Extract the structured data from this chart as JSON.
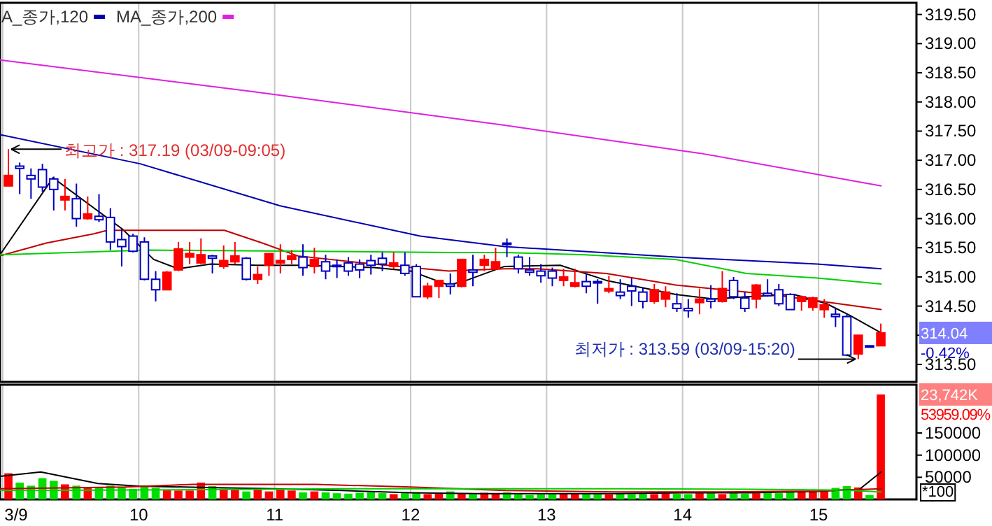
{
  "chart_data": [
    {
      "type": "candlestick",
      "legend": "top left",
      "grid": "x",
      "tick_labels": "y",
      "xlim": [
        8.98,
        15.72
      ],
      "xticks": [
        9,
        10,
        11,
        12,
        13,
        14,
        15
      ],
      "ylim": [
        313.2,
        319.7
      ],
      "yticks": [
        {
          "value": 313.5,
          "label": "313.50"
        },
        {
          "value": 314,
          "label": null
        },
        {
          "value": 314.5,
          "label": "314.50"
        },
        {
          "value": 315,
          "label": "315.00"
        },
        {
          "value": 315.5,
          "label": "315.50"
        },
        {
          "value": 316,
          "label": "316.00"
        },
        {
          "value": 316.5,
          "label": "316.50"
        },
        {
          "value": 317,
          "label": "317.00"
        },
        {
          "value": 317.5,
          "label": "317.50"
        },
        {
          "value": 318,
          "label": "318.00"
        },
        {
          "value": 318.5,
          "label": "318.50"
        },
        {
          "value": 319,
          "label": "319.00"
        },
        {
          "value": 319.5,
          "label": "319.50"
        }
      ],
      "x": [
        9.042,
        9.125,
        9.208,
        9.292,
        9.375,
        9.458,
        9.542,
        9.625,
        9.708,
        9.792,
        9.875,
        9.958,
        10.042,
        10.125,
        10.208,
        10.292,
        10.375,
        10.458,
        10.542,
        10.625,
        10.708,
        10.792,
        10.875,
        10.958,
        11.042,
        11.125,
        11.208,
        11.292,
        11.375,
        11.458,
        11.542,
        11.625,
        11.708,
        11.792,
        11.875,
        11.958,
        12.042,
        12.125,
        12.208,
        12.292,
        12.375,
        12.458,
        12.542,
        12.625,
        12.708,
        12.792,
        12.875,
        12.958,
        13.042,
        13.125,
        13.208,
        13.292,
        13.375,
        13.458,
        13.542,
        13.625,
        13.708,
        13.792,
        13.875,
        13.958,
        14.042,
        14.125,
        14.208,
        14.292,
        14.375,
        14.458,
        14.542,
        14.625,
        14.708,
        14.792,
        14.875,
        14.958,
        15.042,
        15.125,
        15.208,
        15.292,
        15.375,
        15.458
      ],
      "ohlc": [
        [
          316.56,
          317.19,
          316.56,
          316.74
        ],
        [
          316.9,
          316.96,
          316.42,
          316.86
        ],
        [
          316.74,
          316.86,
          316.34,
          316.68
        ],
        [
          316.84,
          316.94,
          316.46,
          316.54
        ],
        [
          316.68,
          316.72,
          316.14,
          316.5
        ],
        [
          316.32,
          316.68,
          316.14,
          316.38
        ],
        [
          316.34,
          316.6,
          315.86,
          316.0
        ],
        [
          316.0,
          316.38,
          315.98,
          316.08
        ],
        [
          316.04,
          316.42,
          315.94,
          315.98
        ],
        [
          316.02,
          316.18,
          315.46,
          315.6
        ],
        [
          315.64,
          315.82,
          315.18,
          315.52
        ],
        [
          315.7,
          315.74,
          315.42,
          315.44
        ],
        [
          315.6,
          315.68,
          314.94,
          314.96
        ],
        [
          314.96,
          315.1,
          314.58,
          314.78
        ],
        [
          314.78,
          315.1,
          314.78,
          315.08
        ],
        [
          315.12,
          315.6,
          315.1,
          315.48
        ],
        [
          315.34,
          315.6,
          315.22,
          315.4
        ],
        [
          315.24,
          315.66,
          315.22,
          315.38
        ],
        [
          315.36,
          315.38,
          315.06,
          315.32
        ],
        [
          315.18,
          315.54,
          315.14,
          315.28
        ],
        [
          315.26,
          315.6,
          315.22,
          315.36
        ],
        [
          315.32,
          315.34,
          314.94,
          314.96
        ],
        [
          314.96,
          315.18,
          314.88,
          315.04
        ],
        [
          315.2,
          315.4,
          315.02,
          315.4
        ],
        [
          315.24,
          315.56,
          315.06,
          315.28
        ],
        [
          315.3,
          315.46,
          315.22,
          315.36
        ],
        [
          315.34,
          315.56,
          315.02,
          315.16
        ],
        [
          315.18,
          315.5,
          315.06,
          315.3
        ],
        [
          315.26,
          315.38,
          314.96,
          315.1
        ],
        [
          315.2,
          315.3,
          314.98,
          315.18
        ],
        [
          315.24,
          315.34,
          315.02,
          315.1
        ],
        [
          315.22,
          315.3,
          314.98,
          315.12
        ],
        [
          315.28,
          315.38,
          315.04,
          315.2
        ],
        [
          315.32,
          315.42,
          315.1,
          315.22
        ],
        [
          315.18,
          315.42,
          315.14,
          315.24
        ],
        [
          315.2,
          315.42,
          315.02,
          315.06
        ],
        [
          315.18,
          315.22,
          314.66,
          314.66
        ],
        [
          314.66,
          314.9,
          314.62,
          314.84
        ],
        [
          314.84,
          314.94,
          314.64,
          314.94
        ],
        [
          314.88,
          315.06,
          314.7,
          314.84
        ],
        [
          314.84,
          315.3,
          314.82,
          315.3
        ],
        [
          315.12,
          315.38,
          314.84,
          315.08
        ],
        [
          315.2,
          315.38,
          315.1,
          315.3
        ],
        [
          315.14,
          315.5,
          315.12,
          315.26
        ],
        [
          315.58,
          315.66,
          315.34,
          315.56
        ],
        [
          315.34,
          315.38,
          315.06,
          315.14
        ],
        [
          315.12,
          315.34,
          315.02,
          315.08
        ],
        [
          315.1,
          315.22,
          314.9,
          315.02
        ],
        [
          315.1,
          315.16,
          314.84,
          314.98
        ],
        [
          314.94,
          315.14,
          314.84,
          315.0
        ],
        [
          314.84,
          315.14,
          314.82,
          314.9
        ],
        [
          314.92,
          315.06,
          314.72,
          314.84
        ],
        [
          314.92,
          314.96,
          314.54,
          314.9
        ],
        [
          314.76,
          315.02,
          314.72,
          314.8
        ],
        [
          314.74,
          314.96,
          314.62,
          314.68
        ],
        [
          314.84,
          314.98,
          314.5,
          314.76
        ],
        [
          314.74,
          314.82,
          314.46,
          314.58
        ],
        [
          314.58,
          314.88,
          314.54,
          314.78
        ],
        [
          314.62,
          314.84,
          314.48,
          314.74
        ],
        [
          314.54,
          314.72,
          314.4,
          314.46
        ],
        [
          314.46,
          314.62,
          314.3,
          314.42
        ],
        [
          314.56,
          314.8,
          314.36,
          314.62
        ],
        [
          314.62,
          314.86,
          314.46,
          314.58
        ],
        [
          314.58,
          315.1,
          314.56,
          314.8
        ],
        [
          314.94,
          315.0,
          314.62,
          314.66
        ],
        [
          314.64,
          314.74,
          314.4,
          314.46
        ],
        [
          314.62,
          314.88,
          314.46,
          314.86
        ],
        [
          314.72,
          314.96,
          314.66,
          314.68
        ],
        [
          314.78,
          314.88,
          314.5,
          314.54
        ],
        [
          314.7,
          314.72,
          314.44,
          314.44
        ],
        [
          314.58,
          314.68,
          314.42,
          314.66
        ],
        [
          314.48,
          314.66,
          314.42,
          314.64
        ],
        [
          314.44,
          314.62,
          314.3,
          314.52
        ],
        [
          314.36,
          314.46,
          314.14,
          314.32
        ],
        [
          314.32,
          314.36,
          313.64,
          313.66
        ],
        [
          313.68,
          314.0,
          313.59,
          314.0
        ],
        [
          313.82,
          313.82,
          313.8,
          313.8
        ],
        [
          313.82,
          314.2,
          313.82,
          314.04
        ]
      ],
      "colors": [
        "#ff0000",
        "#0000c0",
        "#0000c0",
        "#0000c0",
        "#0000c0",
        "#ff0000",
        "#0000c0",
        "#ff0000",
        "#0000c0",
        "#0000c0",
        "#0000c0",
        "#0000c0",
        "#0000c0",
        "#0000c0",
        "#ff0000",
        "#ff0000",
        "#ff0000",
        "#ff0000",
        "#0000c0",
        "#ff0000",
        "#ff0000",
        "#0000c0",
        "#ff0000",
        "#ff0000",
        "#ff0000",
        "#ff0000",
        "#0000c0",
        "#ff0000",
        "#0000c0",
        "#0000c0",
        "#0000c0",
        "#0000c0",
        "#0000c0",
        "#0000c0",
        "#ff0000",
        "#0000c0",
        "#0000c0",
        "#ff0000",
        "#ff0000",
        "#0000c0",
        "#ff0000",
        "#0000c0",
        "#ff0000",
        "#ff0000",
        "#0000c0",
        "#0000c0",
        "#0000c0",
        "#0000c0",
        "#0000c0",
        "#ff0000",
        "#ff0000",
        "#0000c0",
        "#0000c0",
        "#ff0000",
        "#0000c0",
        "#0000c0",
        "#0000c0",
        "#ff0000",
        "#ff0000",
        "#0000c0",
        "#0000c0",
        "#ff0000",
        "#0000c0",
        "#ff0000",
        "#0000c0",
        "#0000c0",
        "#ff0000",
        "#0000c0",
        "#0000c0",
        "#0000c0",
        "#ff0000",
        "#ff0000",
        "#ff0000",
        "#0000c0",
        "#0000c0",
        "#ff0000",
        "#0000c0",
        "#ff0000"
      ],
      "series": [
        {
          "type": "line",
          "color": "#000000",
          "x": [
            8.98,
            9.37,
            9.88,
            10.11,
            10.29,
            10.53,
            10.87,
            11.22,
            11.73,
            12.0,
            12.28,
            12.41,
            12.69,
            13.1,
            13.44,
            13.95,
            14.23,
            14.47,
            14.82,
            15.06,
            15.23,
            15.46
          ],
          "values": [
            315.38,
            316.7,
            315.82,
            315.3,
            315.14,
            315.22,
            315.2,
            315.2,
            315.16,
            315.1,
            314.86,
            314.94,
            315.18,
            315.2,
            314.94,
            314.7,
            314.62,
            314.66,
            314.7,
            314.54,
            314.34,
            314.04
          ]
        },
        {
          "type": "line",
          "color": "#c00000",
          "x": [
            8.98,
            9.32,
            9.67,
            9.77,
            10.63,
            10.91,
            11.17,
            11.73,
            12.28,
            12.69,
            12.93,
            13.44,
            13.95,
            14.65,
            15.46
          ],
          "values": [
            315.36,
            315.58,
            315.74,
            315.8,
            315.8,
            315.58,
            315.36,
            315.22,
            315.1,
            315.14,
            315.14,
            315.06,
            314.86,
            314.7,
            314.44
          ]
        },
        {
          "type": "line",
          "color": "#00d000",
          "x": [
            8.98,
            10.07,
            11.22,
            12.28,
            12.69,
            13.28,
            13.95,
            14.47,
            14.99,
            15.46
          ],
          "values": [
            315.38,
            315.46,
            315.44,
            315.42,
            315.42,
            315.38,
            315.3,
            315.06,
            314.98,
            314.88
          ]
        },
        {
          "type": "line",
          "name": "A_종가,120",
          "color": "#0000b0",
          "x": [
            8.98,
            10.01,
            11.04,
            12.07,
            12.69,
            13.95,
            14.99,
            15.46
          ],
          "values": [
            317.44,
            316.94,
            316.22,
            315.7,
            315.52,
            315.34,
            315.22,
            315.14
          ]
        },
        {
          "type": "line",
          "name": "MA_종가,200",
          "color": "#e020e0",
          "x": [
            8.98,
            10.83,
            12.69,
            14.13,
            15.46
          ],
          "values": [
            318.72,
            318.18,
            317.6,
            317.12,
            316.56
          ]
        }
      ],
      "annotations": [
        "최고가 : 317.19 (03/09-09:05)",
        "최저가 : 313.59 (03/09-15:20)",
        "314.04",
        "-0.42%"
      ]
    },
    {
      "type": "bar",
      "grid": "x",
      "xlim": [
        8.98,
        15.72
      ],
      "xticks": [
        {
          "value": 9,
          "label": "3/9"
        },
        10,
        11,
        12,
        13,
        14,
        15
      ],
      "ylim": [
        0,
        259000
      ],
      "yticks": [
        50000,
        100000,
        150000
      ],
      "ylabel": "*100",
      "series": [
        {
          "type": "bar",
          "x": [
            9.042,
            9.125,
            9.208,
            9.292,
            9.375,
            9.458,
            9.542,
            9.625,
            9.708,
            9.792,
            9.875,
            9.958,
            10.042,
            10.125,
            10.208,
            10.292,
            10.375,
            10.458,
            10.542,
            10.625,
            10.708,
            10.792,
            10.875,
            10.958,
            11.042,
            11.125,
            11.208,
            11.292,
            11.375,
            11.458,
            11.542,
            11.625,
            11.708,
            11.792,
            11.875,
            11.958,
            12.042,
            12.125,
            12.208,
            12.292,
            12.375,
            12.458,
            12.542,
            12.625,
            12.708,
            12.792,
            12.875,
            12.958,
            13.042,
            13.125,
            13.208,
            13.292,
            13.375,
            13.458,
            13.542,
            13.625,
            13.708,
            13.792,
            13.875,
            13.958,
            14.042,
            14.125,
            14.208,
            14.292,
            14.375,
            14.458,
            14.542,
            14.625,
            14.708,
            14.792,
            14.875,
            14.958,
            15.042,
            15.125,
            15.208,
            15.292,
            15.375,
            15.458
          ],
          "values": [
            59000,
            38000,
            31000,
            48000,
            42000,
            34000,
            31000,
            28000,
            28000,
            31000,
            28000,
            24000,
            31000,
            26000,
            22000,
            20000,
            20000,
            38000,
            30000,
            24000,
            22000,
            18000,
            24000,
            18000,
            22000,
            20000,
            16000,
            18000,
            16000,
            14000,
            13000,
            15000,
            16000,
            14000,
            12000,
            14000,
            16000,
            12000,
            14000,
            18000,
            14000,
            12000,
            15000,
            14000,
            16000,
            12000,
            10000,
            12000,
            12000,
            14000,
            13000,
            14000,
            12000,
            11000,
            13000,
            12000,
            14000,
            12000,
            16000,
            13000,
            12000,
            14000,
            16000,
            12000,
            16000,
            13000,
            14000,
            16000,
            14000,
            18000,
            16000,
            18000,
            20000,
            26000,
            30000,
            27000,
            10000,
            237000
          ],
          "colors": [
            "#ff0000",
            "#00e000",
            "#00e000",
            "#00e000",
            "#00e000",
            "#ff0000",
            "#00e000",
            "#ff0000",
            "#00e000",
            "#00e000",
            "#00e000",
            "#00e000",
            "#00e000",
            "#00e000",
            "#ff0000",
            "#ff0000",
            "#ff0000",
            "#ff0000",
            "#00e000",
            "#ff0000",
            "#ff0000",
            "#00e000",
            "#ff0000",
            "#ff0000",
            "#ff0000",
            "#ff0000",
            "#00e000",
            "#ff0000",
            "#00e000",
            "#00e000",
            "#00e000",
            "#00e000",
            "#00e000",
            "#00e000",
            "#ff0000",
            "#00e000",
            "#00e000",
            "#ff0000",
            "#ff0000",
            "#00e000",
            "#ff0000",
            "#00e000",
            "#ff0000",
            "#ff0000",
            "#00e000",
            "#00e000",
            "#00e000",
            "#00e000",
            "#00e000",
            "#ff0000",
            "#ff0000",
            "#00e000",
            "#00e000",
            "#ff0000",
            "#00e000",
            "#00e000",
            "#00e000",
            "#ff0000",
            "#ff0000",
            "#00e000",
            "#00e000",
            "#ff0000",
            "#00e000",
            "#ff0000",
            "#00e000",
            "#00e000",
            "#ff0000",
            "#00e000",
            "#00e000",
            "#00e000",
            "#ff0000",
            "#ff0000",
            "#ff0000",
            "#00e000",
            "#00e000",
            "#ff0000",
            "#00e000",
            "#ff0000"
          ]
        },
        {
          "type": "line",
          "color": "#000000",
          "x": [
            8.98,
            9.28,
            9.7,
            10.0,
            10.5,
            11.0,
            11.5,
            12.0,
            12.5,
            13.0,
            13.5,
            14.0,
            14.5,
            15.0,
            15.21,
            15.29,
            15.46
          ],
          "values": [
            52000,
            62000,
            36000,
            30000,
            27000,
            24000,
            20000,
            15000,
            13000,
            13000,
            13000,
            15000,
            15000,
            18000,
            22000,
            20000,
            62000
          ]
        },
        {
          "type": "line",
          "color": "#c00000",
          "x": [
            8.98,
            9.9,
            10.4,
            11.3,
            12.0,
            12.7,
            13.5,
            14.3,
            15.0,
            15.46
          ],
          "values": [
            24000,
            28000,
            34000,
            34000,
            28000,
            20000,
            17000,
            17000,
            19000,
            24000
          ]
        },
        {
          "type": "line",
          "color": "#00d000",
          "x": [
            8.98,
            10.5,
            11.5,
            12.6,
            13.5,
            14.5,
            15.2,
            15.46
          ],
          "values": [
            20000,
            22000,
            24000,
            24000,
            24000,
            23000,
            21000,
            17000
          ]
        }
      ],
      "annotations": [
        "23,742K",
        "53959.09%"
      ]
    }
  ]
}
